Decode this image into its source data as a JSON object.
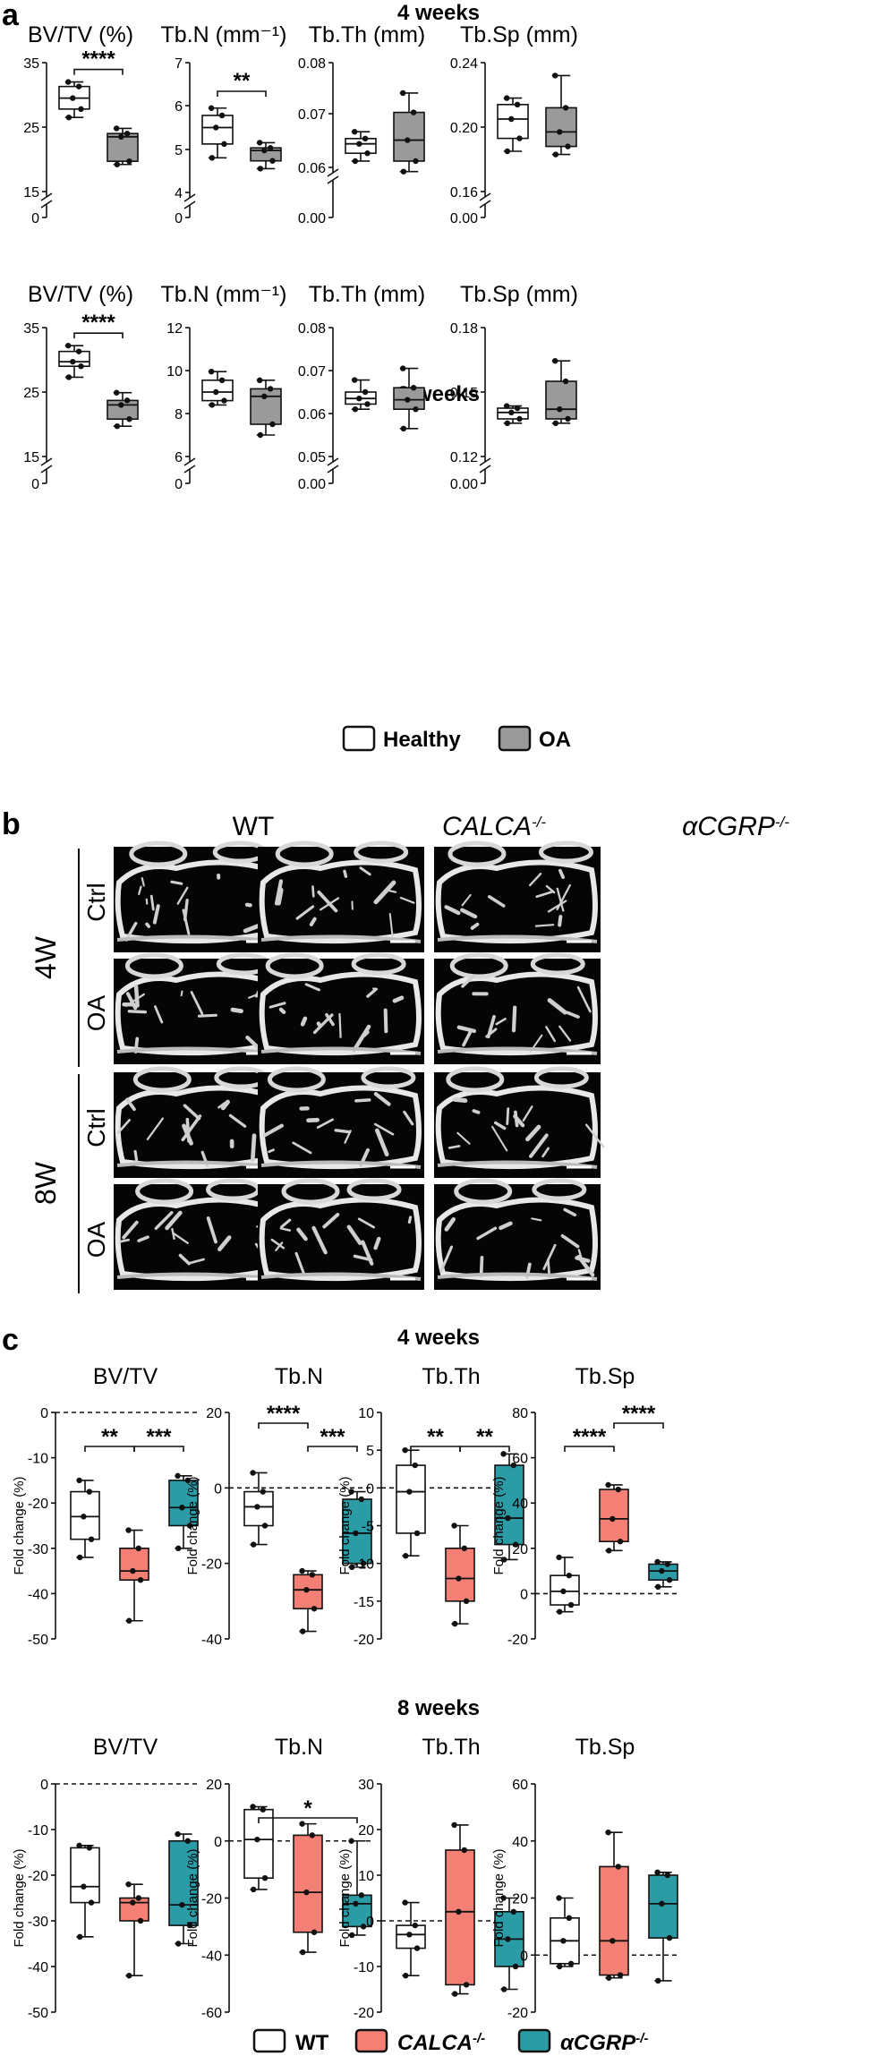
{
  "panel_a": {
    "letter": "a",
    "legend": [
      {
        "label": "Healthy",
        "color": "#ffffff"
      },
      {
        "label": "OA",
        "color": "#9a9a9a"
      }
    ],
    "blocks": [
      {
        "title": "4 weeks",
        "plots": [
          {
            "title": "BV/TV (%)",
            "ticks": [
              "35",
              "25",
              "15",
              "0"
            ],
            "boxes": [
              {
                "min": 26.5,
                "q1": 27.8,
                "med": 29.5,
                "q3": 31.3,
                "max": 32.0
              },
              {
                "min": 19.2,
                "q1": 19.7,
                "med": 23.5,
                "q3": 24.0,
                "max": 24.8
              }
            ],
            "sig": "****"
          },
          {
            "title": "Tb.N (mm⁻¹)",
            "ticks": [
              "7",
              "6",
              "5",
              "4",
              "0"
            ],
            "boxes": [
              {
                "min": 4.8,
                "q1": 5.12,
                "med": 5.5,
                "q3": 5.78,
                "max": 5.95
              },
              {
                "min": 4.55,
                "q1": 4.73,
                "med": 4.97,
                "q3": 5.03,
                "max": 5.15
              }
            ],
            "sig": "**"
          },
          {
            "title": "Tb.Th (mm)",
            "ticks": [
              "0.08",
              "0.07",
              "0.06",
              "0.00"
            ],
            "boxes": [
              {
                "min": 0.0612,
                "q1": 0.0627,
                "med": 0.0645,
                "q3": 0.0655,
                "max": 0.0668
              },
              {
                "min": 0.0592,
                "q1": 0.0612,
                "med": 0.0652,
                "q3": 0.0705,
                "max": 0.0742
              }
            ],
            "sig": ""
          },
          {
            "title": "Tb.Sp (mm)",
            "ticks": [
              "0.24",
              "0.20",
              "0.16",
              "0.00"
            ],
            "boxes": [
              {
                "min": 0.185,
                "q1": 0.193,
                "med": 0.205,
                "q3": 0.214,
                "max": 0.218
              },
              {
                "min": 0.183,
                "q1": 0.188,
                "med": 0.197,
                "q3": 0.212,
                "max": 0.232
              }
            ],
            "sig": ""
          }
        ]
      },
      {
        "title": "8 weeks",
        "plots": [
          {
            "title": "BV/TV (%)",
            "ticks": [
              "35",
              "25",
              "15",
              "0"
            ],
            "boxes": [
              {
                "min": 27.3,
                "q1": 29.0,
                "med": 29.7,
                "q3": 31.3,
                "max": 32.2
              },
              {
                "min": 19.7,
                "q1": 20.8,
                "med": 23.0,
                "q3": 23.7,
                "max": 24.9
              }
            ],
            "sig": "****"
          },
          {
            "title": "Tb.N (mm⁻¹)",
            "ticks": [
              "12",
              "10",
              "8",
              "6",
              "0"
            ],
            "boxes": [
              {
                "min": 8.4,
                "q1": 8.6,
                "med": 9.0,
                "q3": 9.55,
                "max": 9.95
              },
              {
                "min": 7.0,
                "q1": 7.5,
                "med": 8.8,
                "q3": 9.15,
                "max": 9.55
              }
            ],
            "sig": ""
          },
          {
            "title": "Tb.Th (mm)",
            "ticks": [
              "0.08",
              "0.07",
              "0.06",
              "0.05",
              "0.00"
            ],
            "boxes": [
              {
                "min": 0.061,
                "q1": 0.0622,
                "med": 0.0635,
                "q3": 0.065,
                "max": 0.0678
              },
              {
                "min": 0.0565,
                "q1": 0.061,
                "med": 0.0632,
                "q3": 0.066,
                "max": 0.0705
              }
            ],
            "sig": ""
          },
          {
            "title": "Tb.Sp (mm)",
            "ticks": [
              "0.18",
              "0.15",
              "0.12",
              "0.00"
            ],
            "boxes": [
              {
                "min": 0.1355,
                "q1": 0.1375,
                "med": 0.1405,
                "q3": 0.1425,
                "max": 0.1435
              },
              {
                "min": 0.1355,
                "q1": 0.1375,
                "med": 0.142,
                "q3": 0.155,
                "max": 0.1645
              }
            ],
            "sig": ""
          }
        ]
      }
    ]
  },
  "panel_b": {
    "letter": "b",
    "columns": [
      "WT",
      "CALCA",
      "αCGRP"
    ],
    "column_sup": "-/-",
    "groups": [
      {
        "label": "4W",
        "rows": [
          "Ctrl",
          "OA"
        ]
      },
      {
        "label": "8W",
        "rows": [
          "Ctrl",
          "OA"
        ]
      }
    ]
  },
  "panel_c": {
    "letter": "c",
    "ylabel": "Fold change (%)",
    "legend": [
      {
        "label": "WT",
        "color": "#ffffff",
        "sup": ""
      },
      {
        "label": "CALCA",
        "color": "#f47f74",
        "sup": "-/-"
      },
      {
        "label": "αCGRP",
        "color": "#2b9ba6",
        "sup": "-/-"
      }
    ],
    "blocks": [
      {
        "title": "4 weeks",
        "plots": [
          {
            "title": "BV/TV",
            "ticks": [
              "0",
              "-10",
              "-20",
              "-30",
              "-40",
              "-50"
            ],
            "boxes": [
              {
                "min": -32.0,
                "q1": -28.0,
                "med": -23.0,
                "q3": -17.5,
                "max": -15.0
              },
              {
                "min": -46.0,
                "q1": -37.0,
                "med": -35.0,
                "q3": -30.0,
                "max": -26.0
              },
              {
                "min": -30.0,
                "q1": -25.0,
                "med": -21.0,
                "q3": -15.0,
                "max": -14.0
              }
            ],
            "sigs": [
              {
                "text": "**",
                "from": 0,
                "to": 1,
                "level": 0
              },
              {
                "text": "***",
                "from": 1,
                "to": 2,
                "level": 0
              }
            ]
          },
          {
            "title": "Tb.N",
            "ticks": [
              "20",
              "0",
              "-20",
              "-40"
            ],
            "boxes": [
              {
                "min": -15.0,
                "q1": -10.0,
                "med": -5.0,
                "q3": -1.0,
                "max": 4.0
              },
              {
                "min": -38.0,
                "q1": -32.0,
                "med": -27.0,
                "q3": -23.0,
                "max": -22.0
              },
              {
                "min": -21.0,
                "q1": -20.0,
                "med": -12.0,
                "q3": -3.0,
                "max": -1.0
              }
            ],
            "sigs": [
              {
                "text": "****",
                "from": 0,
                "to": 1,
                "level": 1
              },
              {
                "text": "***",
                "from": 1,
                "to": 2,
                "level": 0
              }
            ]
          },
          {
            "title": "Tb.Th",
            "ticks": [
              "10",
              "5",
              "0",
              "-5",
              "-10",
              "-15",
              "-20"
            ],
            "boxes": [
              {
                "min": -9.0,
                "q1": -6.0,
                "med": -0.5,
                "q3": 3.0,
                "max": 5.0
              },
              {
                "min": -18.0,
                "q1": -15.0,
                "med": -12.0,
                "q3": -8.0,
                "max": -5.0
              },
              {
                "min": -9.5,
                "q1": -7.5,
                "med": -4.0,
                "q3": 3.0,
                "max": 4.5
              }
            ],
            "sigs": [
              {
                "text": "**",
                "from": 0,
                "to": 1,
                "level": 0
              },
              {
                "text": "**",
                "from": 1,
                "to": 2,
                "level": 0
              }
            ]
          },
          {
            "title": "Tb.Sp",
            "ticks": [
              "80",
              "60",
              "40",
              "20",
              "0",
              "-20"
            ],
            "boxes": [
              {
                "min": -8.0,
                "q1": -5.0,
                "med": 1.0,
                "q3": 8.0,
                "max": 16.0
              },
              {
                "min": 19.0,
                "q1": 23.0,
                "med": 33.0,
                "q3": 46.0,
                "max": 48.0
              },
              {
                "min": 3.0,
                "q1": 6.0,
                "med": 10.0,
                "q3": 13.0,
                "max": 14.0
              }
            ],
            "sigs": [
              {
                "text": "****",
                "from": 0,
                "to": 1,
                "level": 0
              },
              {
                "text": "****",
                "from": 1,
                "to": 2,
                "level": 1
              }
            ]
          }
        ]
      },
      {
        "title": "8 weeks",
        "plots": [
          {
            "title": "BV/TV",
            "ticks": [
              "0",
              "-10",
              "-20",
              "-30",
              "-40",
              "-50"
            ],
            "boxes": [
              {
                "min": -33.5,
                "q1": -26.0,
                "med": -22.5,
                "q3": -14.0,
                "max": -13.5
              },
              {
                "min": -42.0,
                "q1": -30.0,
                "med": -26.0,
                "q3": -25.0,
                "max": -22.0
              },
              {
                "min": -35.0,
                "q1": -31.0,
                "med": -26.5,
                "q3": -12.5,
                "max": -11.0
              }
            ],
            "sigs": []
          },
          {
            "title": "Tb.N",
            "ticks": [
              "20",
              "0",
              "-20",
              "-40",
              "-60"
            ],
            "boxes": [
              {
                "min": -17.0,
                "q1": -13.0,
                "med": 0.5,
                "q3": 11.0,
                "max": 12.0
              },
              {
                "min": -39.0,
                "q1": -32.0,
                "med": -18.0,
                "q3": 2.0,
                "max": 6.0
              },
              {
                "min": -33.0,
                "q1": -30.0,
                "med": -22.0,
                "q3": -19.0,
                "max": 0.0
              }
            ],
            "sigs": [
              {
                "text": "*",
                "from": 0,
                "to": 2,
                "level": 0
              }
            ]
          },
          {
            "title": "Tb.Th",
            "ticks": [
              "30",
              "20",
              "10",
              "0",
              "-10",
              "-20"
            ],
            "boxes": [
              {
                "min": -12.0,
                "q1": -6.0,
                "med": -3.0,
                "q3": -1.0,
                "max": 4.0
              },
              {
                "min": -16.0,
                "q1": -14.0,
                "med": 2.0,
                "q3": 15.5,
                "max": 21.0
              },
              {
                "min": -15.0,
                "q1": -10.0,
                "med": -4.0,
                "q3": 2.0,
                "max": 5.0
              }
            ],
            "sigs": []
          },
          {
            "title": "Tb.Sp",
            "ticks": [
              "60",
              "40",
              "20",
              "0",
              "-20"
            ],
            "boxes": [
              {
                "min": -4.0,
                "q1": -3.0,
                "med": 5.0,
                "q3": 13.0,
                "max": 20.0
              },
              {
                "min": -8.0,
                "q1": -7.0,
                "med": 5.0,
                "q3": 31.0,
                "max": 43.0
              },
              {
                "min": -9.0,
                "q1": 6.0,
                "med": 18.0,
                "q3": 28.0,
                "max": 29.0
              }
            ],
            "sigs": []
          }
        ]
      }
    ]
  }
}
